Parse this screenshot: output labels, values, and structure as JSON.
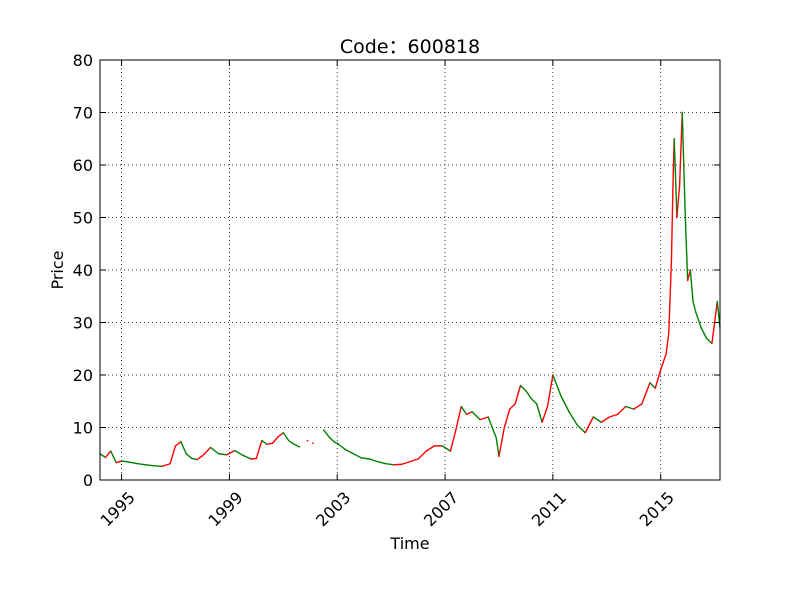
{
  "chart_data": {
    "type": "line",
    "title": "Code：600818",
    "xlabel": "Time",
    "ylabel": "Price",
    "xlim": [
      1994.2,
      2017.2
    ],
    "ylim": [
      0,
      80
    ],
    "x_ticks": [
      {
        "value": 1995,
        "label": "1995"
      },
      {
        "value": 1999,
        "label": "1999"
      },
      {
        "value": 2003,
        "label": "2003"
      },
      {
        "value": 2007,
        "label": "2007"
      },
      {
        "value": 2011,
        "label": "2011"
      },
      {
        "value": 2015,
        "label": "2015"
      }
    ],
    "y_ticks": [
      0,
      10,
      20,
      30,
      40,
      50,
      60,
      70,
      80
    ],
    "grid": true,
    "series": [
      {
        "color_up": "#ff0000",
        "color_down": "#008000",
        "segments": [
          {
            "x": [
              1994.2,
              1994.4,
              1994.6,
              1994.8,
              1995.0,
              1995.3,
              1995.6,
              1995.9,
              1996.2,
              1996.5,
              1996.8,
              1997.0,
              1997.2,
              1997.4,
              1997.6,
              1997.8,
              1998.0,
              1998.3,
              1998.6,
              1998.9,
              1999.2,
              1999.5,
              1999.8,
              2000.0,
              2000.2,
              2000.4,
              2000.6,
              2000.8,
              2001.0,
              2001.2,
              2001.4,
              2001.6
            ],
            "y": [
              5.0,
              4.3,
              5.5,
              3.3,
              3.6,
              3.4,
              3.1,
              2.9,
              2.7,
              2.6,
              3.1,
              6.5,
              7.3,
              5.0,
              4.1,
              3.9,
              4.6,
              6.2,
              5.0,
              4.8,
              5.6,
              4.7,
              4.0,
              4.1,
              7.5,
              6.8,
              7.0,
              8.2,
              9.0,
              7.5,
              6.8,
              6.3
            ]
          },
          {
            "x": [
              2002.5,
              2002.7,
              2002.9,
              2003.0,
              2003.3,
              2003.6,
              2003.9,
              2004.2,
              2004.5,
              2004.8,
              2005.1,
              2005.4,
              2005.7,
              2006.0,
              2006.3,
              2006.6,
              2006.9,
              2007.2,
              2007.4,
              2007.6,
              2007.8,
              2008.0,
              2008.3,
              2008.6,
              2008.9,
              2009.0,
              2009.2,
              2009.4,
              2009.6,
              2009.8,
              2010.0,
              2010.2,
              2010.4,
              2010.6,
              2010.8,
              2011.0,
              2011.3,
              2011.6,
              2011.9,
              2012.2,
              2012.5,
              2012.8,
              2013.1,
              2013.4,
              2013.7,
              2014.0,
              2014.3,
              2014.6,
              2014.8,
              2015.0,
              2015.2,
              2015.3,
              2015.4,
              2015.45,
              2015.5,
              2015.55,
              2015.6,
              2015.7,
              2015.8,
              2015.9,
              2016.0,
              2016.1,
              2016.2,
              2016.3,
              2016.5,
              2016.7,
              2016.9,
              2017.0,
              2017.1,
              2017.2
            ],
            "y": [
              9.5,
              8.2,
              7.2,
              7.0,
              5.8,
              5.0,
              4.2,
              4.0,
              3.5,
              3.1,
              2.9,
              3.0,
              3.5,
              4.0,
              5.5,
              6.5,
              6.5,
              5.5,
              9.5,
              14.0,
              12.5,
              13.0,
              11.5,
              12.0,
              8.0,
              4.5,
              10.0,
              13.5,
              14.5,
              18.0,
              17.0,
              15.5,
              14.5,
              11.0,
              14.0,
              20.0,
              16.0,
              13.0,
              10.5,
              9.0,
              12.0,
              11.0,
              12.0,
              12.5,
              14.0,
              13.5,
              14.5,
              18.5,
              17.5,
              21.0,
              24.0,
              28.0,
              42.0,
              55.0,
              65.0,
              58.0,
              50.0,
              56.0,
              70.0,
              52.0,
              38.0,
              40.0,
              34.0,
              32.0,
              29.0,
              27.0,
              26.0,
              30.0,
              34.0,
              29.0
            ]
          }
        ]
      }
    ],
    "isolated_points": [
      {
        "x": 2001.9,
        "y": 7.5
      },
      {
        "x": 2002.1,
        "y": 7.0
      }
    ]
  }
}
